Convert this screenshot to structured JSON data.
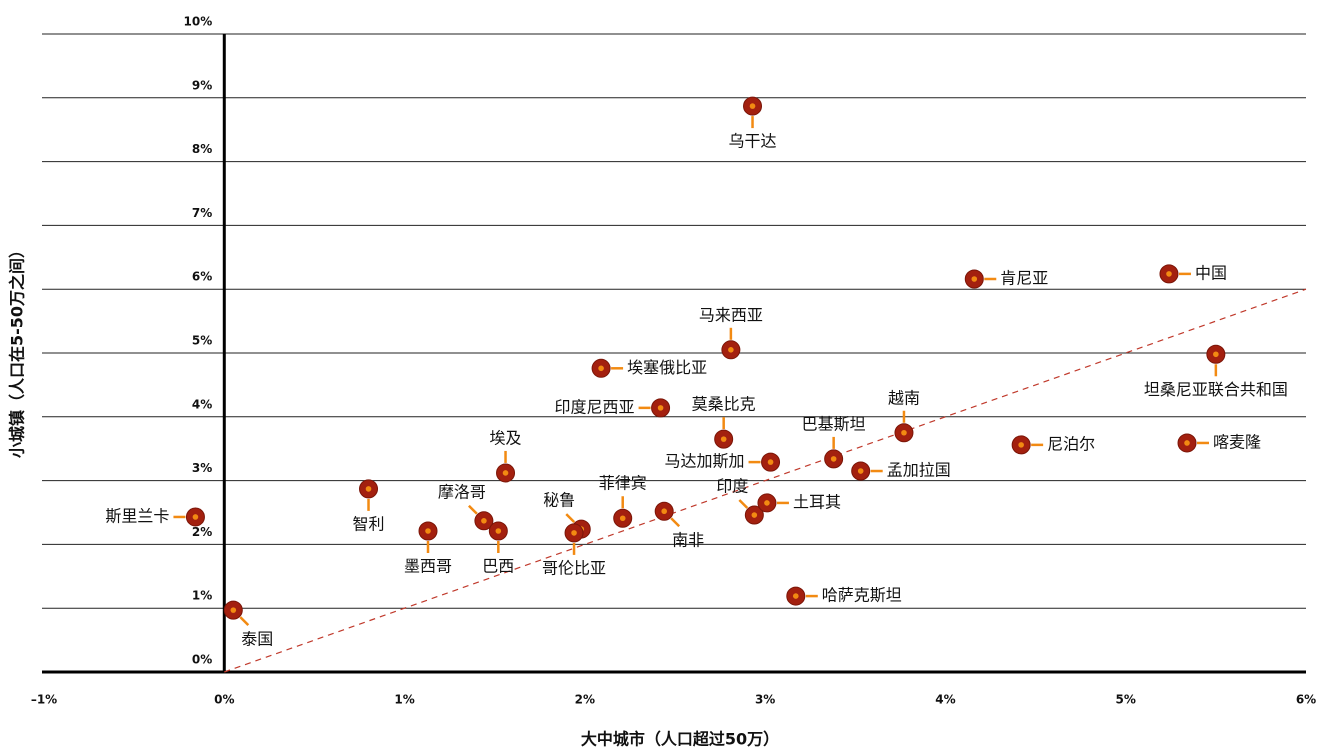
{
  "chart_data": {
    "type": "scatter",
    "x_label": "大中城市（人口超过50万）",
    "y_label": "小城镇（人口在5-50万之间）",
    "labels": [
      "乌干达",
      "肯尼亚",
      "中国",
      "马来西亚",
      "坦桑尼亚联合共和国",
      "埃塞俄比亚",
      "印度尼西亚",
      "莫桑比克",
      "越南",
      "巴基斯坦",
      "尼泊尔",
      "喀麦隆",
      "马达加斯加",
      "孟加拉国",
      "埃及",
      "智利",
      "斯里兰卡",
      "摩洛哥",
      "巴西",
      "墨西哥",
      "秘鲁",
      "哥伦比亚",
      "菲律宾",
      "南非",
      "印度",
      "土耳其",
      "哈萨克斯坦",
      "泰国"
    ],
    "x": [
      2.93,
      4.16,
      5.24,
      2.81,
      5.5,
      2.09,
      2.42,
      2.77,
      3.77,
      3.38,
      4.42,
      5.34,
      3.03,
      3.53,
      1.56,
      0.8,
      -0.16,
      1.44,
      1.52,
      1.13,
      1.98,
      1.94,
      2.21,
      2.44,
      2.94,
      3.01,
      3.17,
      0.05
    ],
    "values": [
      8.87,
      6.16,
      6.24,
      5.05,
      4.98,
      4.76,
      4.14,
      3.65,
      3.75,
      3.34,
      3.56,
      3.59,
      3.29,
      3.15,
      3.12,
      2.87,
      2.43,
      2.37,
      2.21,
      2.21,
      2.24,
      2.18,
      2.41,
      2.52,
      2.46,
      2.65,
      1.19,
      0.97
    ],
    "color": "#a3200f",
    "center_color": "#f28a12",
    "reference_line": {
      "x": [
        0,
        6
      ],
      "y": [
        0,
        6
      ],
      "color": "#c0392b"
    },
    "xlim": [
      -1,
      6
    ],
    "xticks": [
      {
        "value": -1,
        "label": "–1%"
      },
      {
        "value": 0,
        "label": "0%"
      },
      {
        "value": 1,
        "label": "1%"
      },
      {
        "value": 2,
        "label": "2%"
      },
      {
        "value": 3,
        "label": "3%"
      },
      {
        "value": 4,
        "label": "4%"
      },
      {
        "value": 5,
        "label": "5%"
      },
      {
        "value": 6,
        "label": "6%"
      }
    ],
    "ylim": [
      0,
      10
    ],
    "yticks": [
      {
        "value": 0,
        "label": "0%"
      },
      {
        "value": 1,
        "label": "1%"
      },
      {
        "value": 2,
        "label": "2%"
      },
      {
        "value": 3,
        "label": "3%"
      },
      {
        "value": 4,
        "label": "4%"
      },
      {
        "value": 5,
        "label": "5%"
      },
      {
        "value": 6,
        "label": "6%"
      },
      {
        "value": 7,
        "label": "7%"
      },
      {
        "value": 8,
        "label": "8%"
      },
      {
        "value": 9,
        "label": "9%"
      },
      {
        "value": 10,
        "label": "10%"
      }
    ],
    "grid": true
  }
}
